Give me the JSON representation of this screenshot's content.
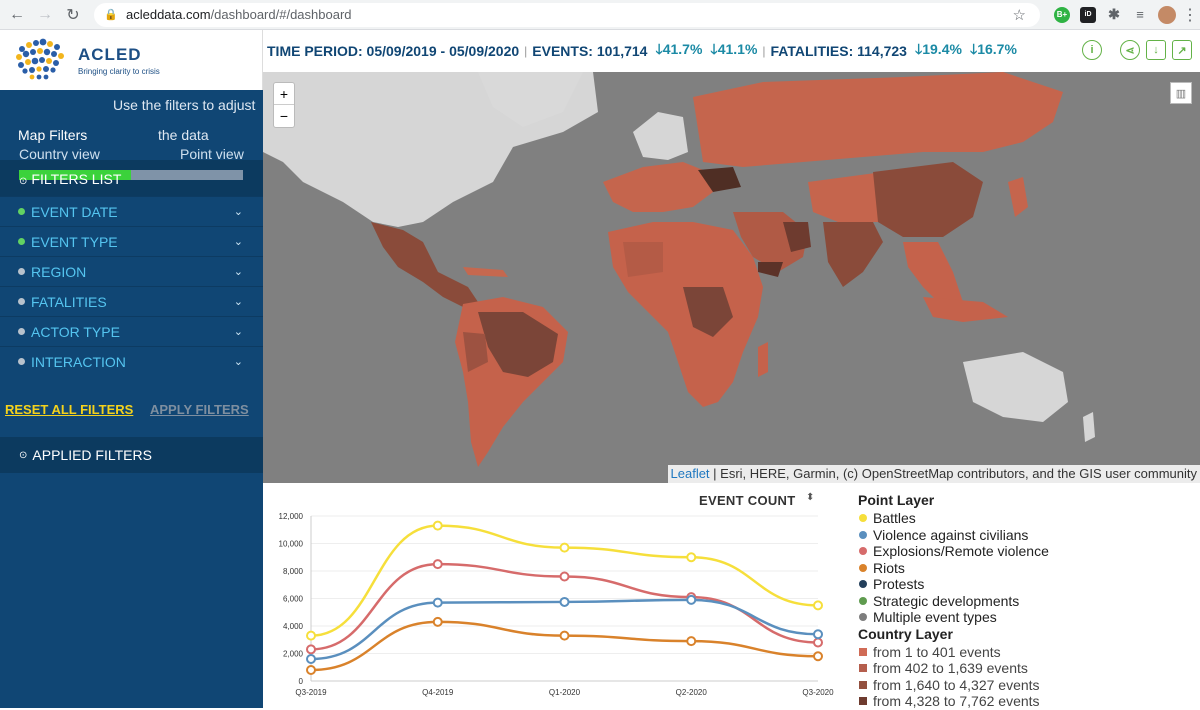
{
  "browser": {
    "url_host": "acleddata.com",
    "url_path": "/dashboard/#/dashboard"
  },
  "logo": {
    "title": "ACLED",
    "subtitle": "Bringing clarity to crisis"
  },
  "sidebar": {
    "hint": [
      "Use the filters to adjust",
      "the data"
    ],
    "map_filters_label": "Map Filters",
    "country_view": "Country view",
    "point_view": "Point view",
    "progress": 0.5,
    "filters_list": "FILTERS LIST",
    "filters": [
      {
        "label": "EVENT DATE",
        "active": true
      },
      {
        "label": "EVENT TYPE",
        "active": true
      },
      {
        "label": "REGION",
        "active": false
      },
      {
        "label": "FATALITIES",
        "active": false
      },
      {
        "label": "ACTOR TYPE",
        "active": false
      },
      {
        "label": "INTERACTION",
        "active": false
      }
    ],
    "reset_label": "RESET ALL FILTERS",
    "apply_label": "APPLY FILTERS",
    "applied_label": "APPLIED FILTERS"
  },
  "stats": {
    "time_period": "TIME PERIOD: 05/09/2019 - 05/09/2020",
    "events": "EVENTS: 101,714",
    "events_pct1": "41.7%",
    "events_pct2": "41.1%",
    "fatalities": "FATALITIES: 114,723",
    "fat_pct1": "19.4%",
    "fat_pct2": "16.7%"
  },
  "map": {
    "attribution_link": "Leaflet",
    "attribution_text": " | Esri, HERE, Garmin, (c) OpenStreetMap contributors, and the GIS user community"
  },
  "chart_header": "EVENT COUNT",
  "chart_data": {
    "type": "line",
    "categories": [
      "Q3-2019",
      "Q4-2019",
      "Q1-2020",
      "Q2-2020",
      "Q3-2020"
    ],
    "ylim": [
      0,
      12000
    ],
    "yticks": [
      "0",
      "2,000",
      "4,000",
      "6,000",
      "8,000",
      "10,000",
      "12,000"
    ],
    "series": [
      {
        "name": "Battles",
        "color": "#f6df3b",
        "values": [
          3300,
          11300,
          9700,
          9000,
          5500
        ]
      },
      {
        "name": "Explosions/Remote violence",
        "color": "#d66b6b",
        "values": [
          2300,
          8500,
          7600,
          6100,
          2800
        ]
      },
      {
        "name": "Violence against civilians",
        "color": "#5a8fbe",
        "values": [
          1600,
          5700,
          5750,
          5900,
          3400
        ]
      },
      {
        "name": "Riots",
        "color": "#d9822b",
        "values": [
          800,
          4300,
          3300,
          2900,
          1800
        ]
      }
    ]
  },
  "legend": {
    "point_title": "Point Layer",
    "points": [
      {
        "label": "Battles",
        "color": "#f6df3b"
      },
      {
        "label": "Violence against civilians",
        "color": "#5a8fbe"
      },
      {
        "label": "Explosions/Remote violence",
        "color": "#d66b6b"
      },
      {
        "label": "Riots",
        "color": "#d9822b"
      },
      {
        "label": "Protests",
        "color": "#233f5b"
      },
      {
        "label": "Strategic developments",
        "color": "#5f9b4f"
      },
      {
        "label": "Multiple event types",
        "color": "#7d7d7d"
      }
    ],
    "country_title": "Country Layer",
    "countries": [
      {
        "label": "from 1 to 401 events",
        "color": "#d06b56"
      },
      {
        "label": "from 402 to 1,639 events",
        "color": "#b55e4d"
      },
      {
        "label": "from 1,640 to 4,327 events",
        "color": "#93503f"
      },
      {
        "label": "from 4,328 to 7,762 events",
        "color": "#6e3b2f"
      }
    ]
  }
}
